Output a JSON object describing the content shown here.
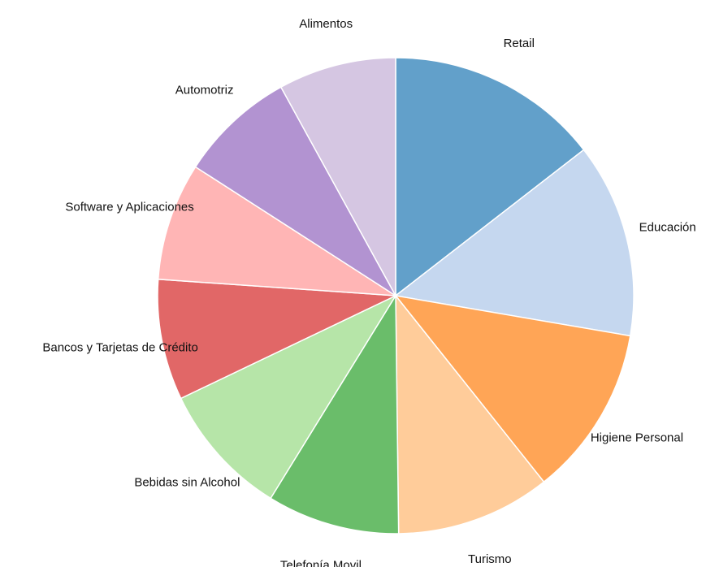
{
  "chart_data": {
    "type": "pie",
    "categories": [
      "Retail",
      "Educación",
      "Higiene Personal",
      "Turismo",
      "Telefonía Movil",
      "Bebidas sin Alcohol",
      "Bancos y Tarjetas de Crédito",
      "Software y Aplicaciones",
      "Automotriz",
      "Alimentos"
    ],
    "values": [
      14.5,
      13.2,
      11.6,
      10.5,
      9.0,
      9.1,
      8.2,
      8.0,
      7.9,
      8.0
    ],
    "colors": [
      "#62a0ca",
      "#c5d7ef",
      "#ffa556",
      "#ffcc9a",
      "#6abd6a",
      "#b6e5a8",
      "#e16767",
      "#ffb5b5",
      "#b293d1",
      "#d5c6e2"
    ]
  }
}
